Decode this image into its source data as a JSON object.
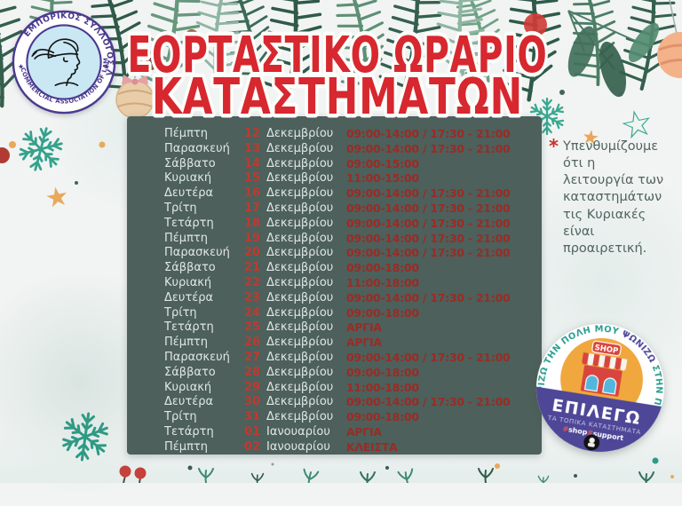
{
  "header": {
    "title_line1": "ΕΟΡΤΑΣΤΙΚΟ ΩΡΑΡΙΟ",
    "title_line2": "ΚΑΤΑΣΤΗΜΑΤΩΝ"
  },
  "logo": {
    "arc_top": "ΕΜΠΟΡΙΚΟΣ ΣΥΛΛΟΓΟΣ ΛΑΜΙΑΣ",
    "arc_bottom": "COMMERCIAL ASSOCIATION OF LAMIA",
    "star": "★"
  },
  "schedule": {
    "rows": [
      {
        "day": "Πέμπτη",
        "date": "12",
        "month": "Δεκεμβρίου",
        "hours": "09:00-14:00 / 17:30 - 21:00"
      },
      {
        "day": "Παρασκευή",
        "date": "13",
        "month": "Δεκεμβρίου",
        "hours": "09:00-14:00 / 17:30 - 21:00"
      },
      {
        "day": "Σάββατο",
        "date": "14",
        "month": "Δεκεμβρίου",
        "hours": "09:00-15:00"
      },
      {
        "day": "Κυριακή",
        "date": "15",
        "month": "Δεκεμβρίου",
        "hours": "11:00-15:00"
      },
      {
        "day": "Δευτέρα",
        "date": "16",
        "month": "Δεκεμβρίου",
        "hours": "09:00-14:00 / 17:30 - 21:00"
      },
      {
        "day": "Τρίτη",
        "date": "17",
        "month": "Δεκεμβρίου",
        "hours": "09:00-14:00 / 17:30 - 21:00"
      },
      {
        "day": "Τετάρτη",
        "date": "18",
        "month": "Δεκεμβρίου",
        "hours": "09:00-14:00 / 17:30 - 21:00"
      },
      {
        "day": "Πέμπτη",
        "date": "19",
        "month": "Δεκεμβρίου",
        "hours": "09:00-14:00 / 17:30 - 21:00"
      },
      {
        "day": "Παρασκευή",
        "date": "20",
        "month": "Δεκεμβρίου",
        "hours": "09:00-14:00 / 17:30 - 21:00"
      },
      {
        "day": "Σάββατο",
        "date": "21",
        "month": "Δεκεμβρίου",
        "hours": "09:00-18:00"
      },
      {
        "day": "Κυριακή",
        "date": "22",
        "month": "Δεκεμβρίου",
        "hours": "11:00-18:00"
      },
      {
        "day": "Δευτέρα",
        "date": "23",
        "month": "Δεκεμβρίου",
        "hours": "09:00-14:00 / 17:30 - 21:00"
      },
      {
        "day": "Τρίτη",
        "date": "24",
        "month": "Δεκεμβρίου",
        "hours": "09:00-18:00"
      },
      {
        "day": "Τετάρτη",
        "date": "25",
        "month": "Δεκεμβρίου",
        "hours": "ΑΡΓΙΑ"
      },
      {
        "day": "Πέμπτη",
        "date": "26",
        "month": "Δεκεμβρίου",
        "hours": "ΑΡΓΙΑ"
      },
      {
        "day": "Παρασκευή",
        "date": "27",
        "month": "Δεκεμβρίου",
        "hours": "09:00-14:00 / 17:30 - 21:00"
      },
      {
        "day": "Σάββατο",
        "date": "28",
        "month": "Δεκεμβρίου",
        "hours": "09:00-18:00"
      },
      {
        "day": "Κυριακή",
        "date": "29",
        "month": "Δεκεμβρίου",
        "hours": "11:00-18:00"
      },
      {
        "day": "Δευτέρα",
        "date": "30",
        "month": "Δεκεμβρίου",
        "hours": "09:00-14:00 / 17:30 - 21:00"
      },
      {
        "day": "Τρίτη",
        "date": "31",
        "month": "Δεκεμβρίου",
        "hours": "09:00-18:00"
      },
      {
        "day": "Τετάρτη",
        "date": "01",
        "month": "Ιανουαρίου",
        "hours": "ΑΡΓΙΑ"
      },
      {
        "day": "Πέμπτη",
        "date": "02",
        "month": "Ιανουαρίου",
        "hours": "ΚΛΕΙΣΤΑ"
      }
    ]
  },
  "note": {
    "marker": "*",
    "text": "Υπενθυμίζουμε\nότι η\nλειτουργία των\nκαταστημάτων\nτις Κυριακές\nείναι\nπροαιρετική."
  },
  "badge": {
    "arc_part1": "ΣΤΗΡΙΖΩ ΤΗΝ ΠΟΛΗ ΜΟΥ ",
    "arc_emphasis": "ΨΩΝΙΖΩ",
    "arc_part2": " ΣΤΗΝ ΠΟΛΗ ΜΟΥ",
    "shop_sign": "SHOP",
    "headline": "ΕΠΙΛΕΓΩ",
    "subline": "ΤΑ ΤΟΠΙΚΑ ΚΑΤΑΣΤΗΜΑΤΑ",
    "tag_hash1": "#",
    "tag_word1": "shop",
    "tag_hash2": "#",
    "tag_word2": "support"
  },
  "decor": {
    "star_filled": "★",
    "star_outline": "☆"
  },
  "colors": {
    "title_red": "#d7272f",
    "panel_green": "#4d605b",
    "date_red": "#c0392f",
    "hours_red": "#9a2b25",
    "note_ink": "#51645f",
    "badge_purple": "#4e4798",
    "badge_orange": "#f0a73e",
    "badge_teal": "#2a9d8f",
    "logo_purple": "#4b3a8f"
  }
}
